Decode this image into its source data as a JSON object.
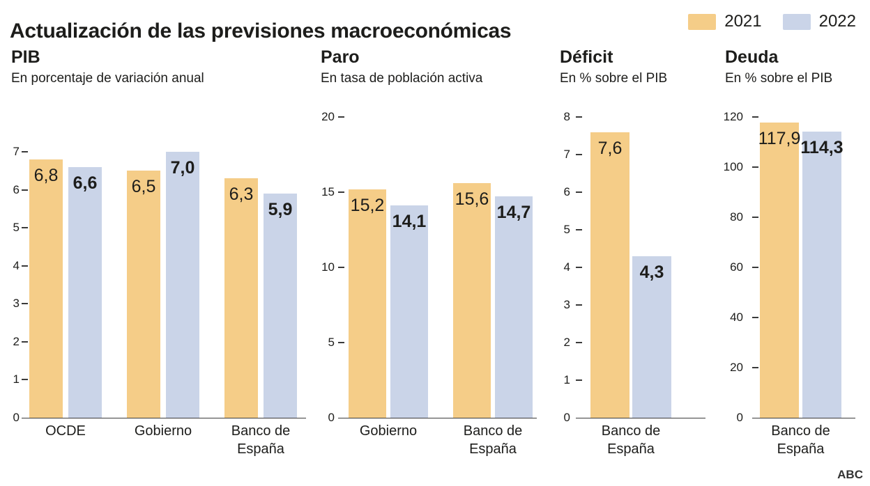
{
  "title": "Actualización de las previsiones macroeconómicas",
  "footer": {
    "brand": "ABC"
  },
  "colors": {
    "bar_2021": "#F5CD88",
    "bar_2022": "#CAD4E8",
    "text": "#1D1D1B",
    "axis": "#3A3A3A"
  },
  "legend": {
    "position": "top-right",
    "items": [
      {
        "label": "2021",
        "color": "#F5CD88"
      },
      {
        "label": "2022",
        "color": "#CAD4E8"
      }
    ]
  },
  "chart_data": [
    {
      "type": "bar",
      "title": "PIB",
      "subtitle": "En porcentaje de variación anual",
      "categories": [
        "OCDE",
        "Gobierno",
        "Banco de España"
      ],
      "series": [
        {
          "name": "2021",
          "values": [
            6.8,
            6.5,
            6.3
          ],
          "labels": [
            "6,8",
            "6,5",
            "6,3"
          ]
        },
        {
          "name": "2022",
          "values": [
            6.6,
            7.0,
            5.9
          ],
          "labels": [
            "6,6",
            "7,0",
            "5,9"
          ]
        }
      ],
      "ylim": [
        0,
        7
      ],
      "yticks": [
        0,
        1,
        2,
        3,
        4,
        5,
        6,
        7
      ],
      "grid": false
    },
    {
      "type": "bar",
      "title": "Paro",
      "subtitle": "En tasa de población activa",
      "categories": [
        "Gobierno",
        "Banco de España"
      ],
      "series": [
        {
          "name": "2021",
          "values": [
            15.2,
            15.6
          ],
          "labels": [
            "15,2",
            "15,6"
          ]
        },
        {
          "name": "2022",
          "values": [
            14.1,
            14.7
          ],
          "labels": [
            "14,1",
            "14,7"
          ]
        }
      ],
      "ylim": [
        0,
        20
      ],
      "yticks": [
        0,
        5,
        10,
        15,
        20
      ],
      "grid": false
    },
    {
      "type": "bar",
      "title": "Déficit",
      "subtitle": "En % sobre el PIB",
      "categories": [
        "Banco de España"
      ],
      "series": [
        {
          "name": "2021",
          "values": [
            7.6
          ],
          "labels": [
            "7,6"
          ]
        },
        {
          "name": "2022",
          "values": [
            4.3
          ],
          "labels": [
            "4,3"
          ]
        }
      ],
      "ylim": [
        0,
        8
      ],
      "yticks": [
        0,
        1,
        2,
        3,
        4,
        5,
        6,
        7,
        8
      ],
      "grid": false
    },
    {
      "type": "bar",
      "title": "Deuda",
      "subtitle": "En % sobre el PIB",
      "categories": [
        "Banco de España"
      ],
      "series": [
        {
          "name": "2021",
          "values": [
            117.9
          ],
          "labels": [
            "117,9"
          ]
        },
        {
          "name": "2022",
          "values": [
            114.3
          ],
          "labels": [
            "114,3"
          ]
        }
      ],
      "ylim": [
        0,
        120
      ],
      "yticks": [
        0,
        20,
        40,
        60,
        80,
        100,
        120
      ],
      "grid": false
    }
  ]
}
